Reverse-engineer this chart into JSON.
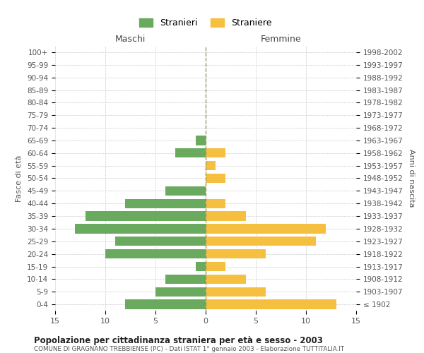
{
  "age_groups": [
    "0-4",
    "5-9",
    "10-14",
    "15-19",
    "20-24",
    "25-29",
    "30-34",
    "35-39",
    "40-44",
    "45-49",
    "50-54",
    "55-59",
    "60-64",
    "65-69",
    "70-74",
    "75-79",
    "80-84",
    "85-89",
    "90-94",
    "95-99",
    "100+"
  ],
  "birth_years": [
    "1998-2002",
    "1993-1997",
    "1988-1992",
    "1983-1987",
    "1978-1982",
    "1973-1977",
    "1968-1972",
    "1963-1967",
    "1958-1962",
    "1953-1957",
    "1948-1952",
    "1943-1947",
    "1938-1942",
    "1933-1937",
    "1928-1932",
    "1923-1927",
    "1918-1922",
    "1913-1917",
    "1908-1912",
    "1903-1907",
    "≤ 1902"
  ],
  "males": [
    8,
    5,
    4,
    1,
    10,
    9,
    13,
    12,
    8,
    4,
    0,
    0,
    3,
    1,
    0,
    0,
    0,
    0,
    0,
    0,
    0
  ],
  "females": [
    13,
    6,
    4,
    2,
    6,
    11,
    12,
    4,
    2,
    0,
    2,
    1,
    2,
    0,
    0,
    0,
    0,
    0,
    0,
    0,
    0
  ],
  "male_color": "#6aaa5f",
  "female_color": "#f5c040",
  "title": "Popolazione per cittadinanza straniera per età e sesso - 2003",
  "subtitle": "COMUNE DI GRAGNANO TREBBIENSE (PC) - Dati ISTAT 1° gennaio 2003 - Elaborazione TUTTITALIA.IT",
  "xlabel_left": "Maschi",
  "xlabel_right": "Femmine",
  "ylabel_left": "Fasce di età",
  "ylabel_right": "Anni di nascita",
  "legend_stranieri": "Stranieri",
  "legend_straniere": "Straniere",
  "xlim": 15,
  "background_color": "#ffffff",
  "grid_color": "#cccccc"
}
